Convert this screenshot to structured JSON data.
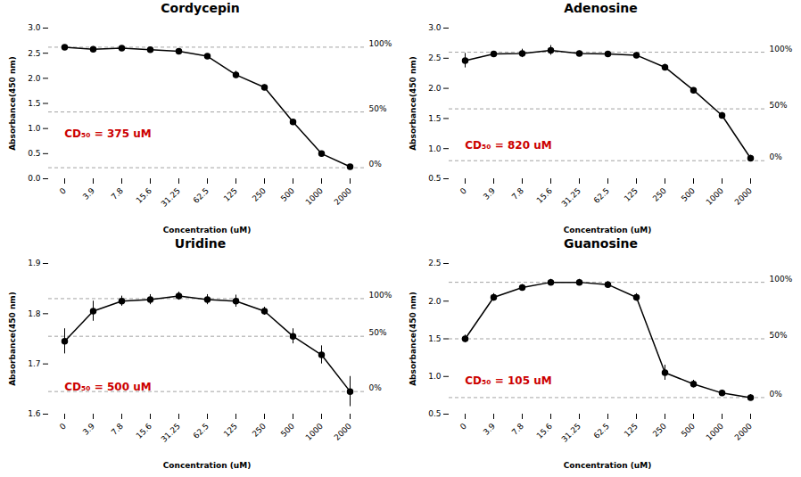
{
  "chart_data": [
    {
      "type": "line",
      "title": "Cordycepin",
      "categories": [
        "0",
        "3.9",
        "7.8",
        "15.6",
        "31.25",
        "62.5",
        "125",
        "250",
        "500",
        "1000",
        "2000"
      ],
      "values": [
        2.62,
        2.58,
        2.6,
        2.57,
        2.54,
        2.44,
        2.07,
        1.82,
        1.13,
        0.5,
        0.24
      ],
      "errors": [
        0.03,
        0.05,
        0.03,
        0.03,
        0.03,
        0.04,
        0.07,
        0.05,
        0.04,
        0.03,
        0.04
      ],
      "color": "#000000",
      "marker": "circle",
      "grid": false,
      "ylim": [
        0,
        3.0
      ],
      "yticks": [
        {
          "value": 0,
          "label": "0.0"
        },
        0.5,
        {
          "value": 1.0,
          "label": "1.0"
        },
        1.5,
        {
          "value": 2.0,
          "label": "2.0"
        },
        2.5,
        {
          "value": 3.0,
          "label": "3.0"
        }
      ],
      "xlabel": "Concentration (uM)",
      "ylabel": "Absorbance(450 nm)",
      "hlines": {
        "color": "#999999",
        "line_style": "dashed",
        "lines": [
          {
            "value": 2.62,
            "label": "100%"
          },
          {
            "value": 1.33,
            "label": "50%"
          },
          {
            "value": 0.22,
            "label": "0%"
          }
        ]
      },
      "annotation": {
        "text": "CD₅₀ = 375 uM",
        "color": "#cc0000"
      }
    },
    {
      "type": "line",
      "title": "Adenosine",
      "categories": [
        "0",
        "3.9",
        "7.8",
        "15.6",
        "31.25",
        "62.5",
        "125",
        "250",
        "500",
        "1000",
        "2000"
      ],
      "values": [
        2.46,
        2.57,
        2.58,
        2.63,
        2.58,
        2.57,
        2.55,
        2.35,
        1.97,
        1.55,
        0.84
      ],
      "errors": [
        0.12,
        0.04,
        0.07,
        0.08,
        0.04,
        0.03,
        0.04,
        0.05,
        0.04,
        0.05,
        0.05
      ],
      "color": "#000000",
      "marker": "circle",
      "grid": false,
      "ylim": [
        0.5,
        3.0
      ],
      "yticks": [
        0.5,
        {
          "value": 1.0,
          "label": "1.0"
        },
        1.5,
        {
          "value": 2.0,
          "label": "2.0"
        },
        2.5,
        {
          "value": 3.0,
          "label": "3.0"
        }
      ],
      "xlabel": "Concentration (uM)",
      "ylabel": "Absorbance(450 nm)",
      "hlines": {
        "color": "#999999",
        "line_style": "dashed",
        "lines": [
          {
            "value": 2.6,
            "label": "100%"
          },
          {
            "value": 1.66,
            "label": "50%"
          },
          {
            "value": 0.8,
            "label": "0%"
          }
        ]
      },
      "annotation": {
        "text": "CD₅₀ = 820 uM",
        "color": "#cc0000"
      }
    },
    {
      "type": "line",
      "title": "Uridine",
      "categories": [
        "0",
        "3.9",
        "7.8",
        "15.6",
        "31.25",
        "62.5",
        "125",
        "250",
        "500",
        "1000",
        "2000"
      ],
      "values": [
        1.745,
        1.805,
        1.825,
        1.828,
        1.835,
        1.828,
        1.825,
        1.805,
        1.755,
        1.718,
        1.645
      ],
      "errors": [
        0.025,
        0.02,
        0.01,
        0.01,
        0.008,
        0.01,
        0.012,
        0.008,
        0.015,
        0.018,
        0.03
      ],
      "color": "#000000",
      "marker": "circle",
      "grid": false,
      "ylim": [
        1.6,
        1.9
      ],
      "yticks": [
        1.6,
        1.7,
        1.8,
        1.9
      ],
      "xlabel": "Concentration (uM)",
      "ylabel": "Absorbance(450 nm)",
      "hlines": {
        "color": "#999999",
        "line_style": "dashed",
        "lines": [
          {
            "value": 1.83,
            "label": "100%"
          },
          {
            "value": 1.755,
            "label": "50%"
          },
          {
            "value": 1.645,
            "label": "0%"
          }
        ]
      },
      "annotation": {
        "text": "CD₅₀ = 500 uM",
        "color": "#cc0000"
      }
    },
    {
      "type": "line",
      "title": "Guanosine",
      "categories": [
        "0",
        "3.9",
        "7.8",
        "15.6",
        "31.25",
        "62.5",
        "125",
        "250",
        "500",
        "1000",
        "2000"
      ],
      "values": [
        1.5,
        2.05,
        2.18,
        2.25,
        2.25,
        2.22,
        2.05,
        1.05,
        0.9,
        0.78,
        0.72
      ],
      "errors": [
        0.05,
        0.05,
        0.04,
        0.04,
        0.04,
        0.04,
        0.05,
        0.1,
        0.05,
        0.04,
        0.04
      ],
      "color": "#000000",
      "marker": "circle",
      "grid": false,
      "ylim": [
        0.5,
        2.5
      ],
      "yticks": [
        0.5,
        {
          "value": 1.0,
          "label": "1.0"
        },
        1.5,
        {
          "value": 2.0,
          "label": "2.0"
        },
        2.5
      ],
      "xlabel": "Concentration (uM)",
      "ylabel": "Absorbance(450 nm)",
      "hlines": {
        "color": "#999999",
        "line_style": "dashed",
        "lines": [
          {
            "value": 2.25,
            "label": "100%"
          },
          {
            "value": 1.5,
            "label": "50%"
          },
          {
            "value": 0.72,
            "label": "0%"
          }
        ]
      },
      "annotation": {
        "text": "CD₅₀ = 105 uM",
        "color": "#cc0000"
      }
    }
  ]
}
